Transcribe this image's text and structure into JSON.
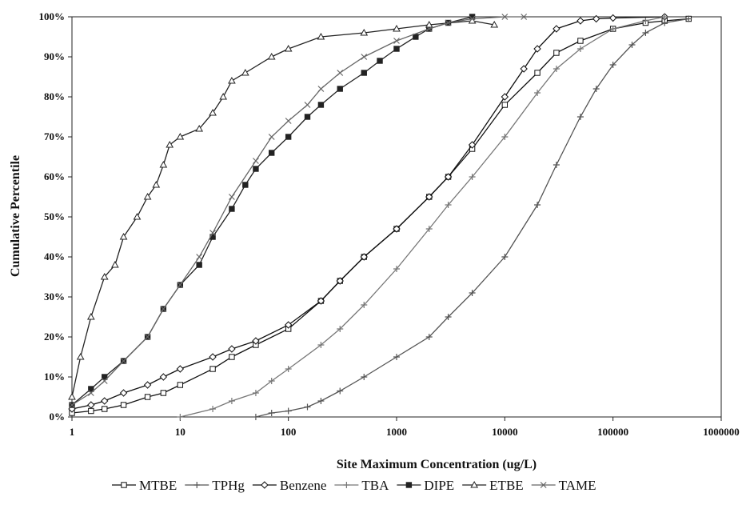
{
  "chart_data": {
    "type": "line",
    "title": "",
    "xlabel": "Site Maximum Concentration (ug/L)",
    "ylabel": "Cumulative Percentile",
    "xscale": "log",
    "xlim": [
      1,
      1000000
    ],
    "ylim": [
      0,
      100
    ],
    "x_ticks": [
      "1",
      "10",
      "100",
      "1000",
      "10000",
      "100000",
      "1000000"
    ],
    "y_ticks": [
      "0%",
      "10%",
      "20%",
      "30%",
      "40%",
      "50%",
      "60%",
      "70%",
      "80%",
      "90%",
      "100%"
    ],
    "grid": false,
    "legend_position": "bottom",
    "series": [
      {
        "name": "MTBE",
        "marker": "square",
        "color": "#111111",
        "x": [
          1,
          1.5,
          2,
          3,
          5,
          7,
          10,
          20,
          30,
          50,
          100,
          200,
          300,
          500,
          1000,
          2000,
          3000,
          5000,
          10000,
          20000,
          30000,
          50000,
          100000,
          200000,
          300000,
          500000
        ],
        "y": [
          1,
          1.5,
          2,
          3,
          5,
          6,
          8,
          12,
          15,
          18,
          22,
          29,
          34,
          40,
          47,
          55,
          60,
          67,
          78,
          86,
          91,
          94,
          97,
          98.5,
          99,
          99.5
        ]
      },
      {
        "name": "TPHg",
        "marker": "plus",
        "color": "#555555",
        "x": [
          50,
          70,
          100,
          150,
          200,
          300,
          500,
          1000,
          2000,
          3000,
          5000,
          10000,
          20000,
          30000,
          50000,
          70000,
          100000,
          150000,
          200000,
          300000,
          500000
        ],
        "y": [
          0,
          1,
          1.5,
          2.5,
          4,
          6.5,
          10,
          15,
          20,
          25,
          31,
          40,
          53,
          63,
          75,
          82,
          88,
          93,
          96,
          98.5,
          99.5
        ]
      },
      {
        "name": "Benzene",
        "marker": "diamond",
        "color": "#111111",
        "x": [
          1,
          1.5,
          2,
          3,
          5,
          7,
          10,
          20,
          30,
          50,
          100,
          200,
          300,
          500,
          1000,
          2000,
          3000,
          5000,
          10000,
          15000,
          20000,
          30000,
          50000,
          70000,
          100000,
          300000
        ],
        "y": [
          2,
          3,
          4,
          6,
          8,
          10,
          12,
          15,
          17,
          19,
          23,
          29,
          34,
          40,
          47,
          55,
          60,
          68,
          80,
          87,
          92,
          97,
          99,
          99.5,
          99.7,
          100
        ]
      },
      {
        "name": "TBA",
        "marker": "plus",
        "color": "#777777",
        "x": [
          10,
          20,
          30,
          50,
          70,
          100,
          200,
          300,
          500,
          1000,
          2000,
          3000,
          5000,
          10000,
          20000,
          30000,
          50000,
          100000,
          200000,
          300000
        ],
        "y": [
          0,
          2,
          4,
          6,
          9,
          12,
          18,
          22,
          28,
          37,
          47,
          53,
          60,
          70,
          81,
          87,
          92,
          97,
          99,
          100
        ]
      },
      {
        "name": "DIPE",
        "marker": "filled-square",
        "color": "#222222",
        "x": [
          1,
          1.5,
          2,
          3,
          5,
          7,
          10,
          15,
          20,
          30,
          40,
          50,
          70,
          100,
          150,
          200,
          300,
          500,
          700,
          1000,
          1500,
          2000,
          3000,
          5000
        ],
        "y": [
          3,
          7,
          10,
          14,
          20,
          27,
          33,
          38,
          45,
          52,
          58,
          62,
          66,
          70,
          75,
          78,
          82,
          86,
          89,
          92,
          95,
          97,
          98.5,
          100
        ]
      },
      {
        "name": "ETBE",
        "marker": "triangle",
        "color": "#222222",
        "x": [
          1,
          1.2,
          1.5,
          2,
          2.5,
          3,
          4,
          5,
          6,
          7,
          8,
          10,
          15,
          20,
          25,
          30,
          40,
          70,
          100,
          200,
          500,
          1000,
          2000,
          5000,
          8000
        ],
        "y": [
          5,
          15,
          25,
          35,
          38,
          45,
          50,
          55,
          58,
          63,
          68,
          70,
          72,
          76,
          80,
          84,
          86,
          90,
          92,
          95,
          96,
          97,
          98,
          99,
          98
        ]
      },
      {
        "name": "TAME",
        "marker": "x",
        "color": "#666666",
        "x": [
          1,
          1.5,
          2,
          3,
          5,
          7,
          10,
          15,
          20,
          30,
          50,
          70,
          100,
          150,
          200,
          300,
          500,
          1000,
          2000,
          3000,
          5000,
          10000,
          15000
        ],
        "y": [
          3,
          6,
          9,
          14,
          20,
          27,
          33,
          40,
          46,
          55,
          64,
          70,
          74,
          78,
          82,
          86,
          90,
          94,
          97,
          98.5,
          99.5,
          100,
          100
        ]
      }
    ]
  }
}
